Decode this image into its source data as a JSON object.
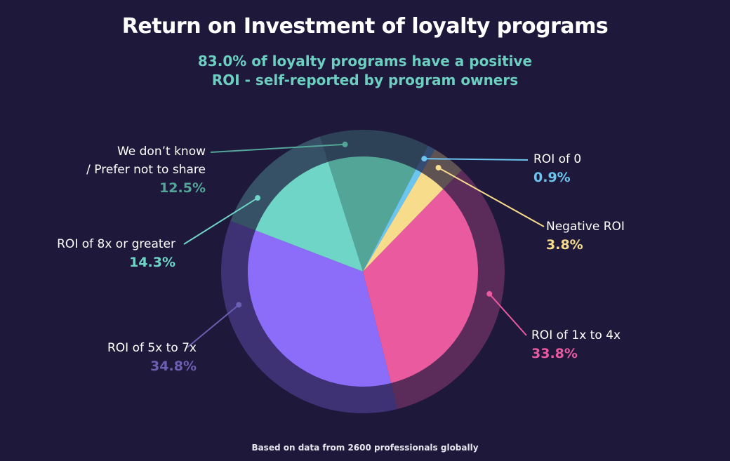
{
  "title": "Return on Investment of loyalty programs",
  "subtitle_line1": "83.0% of loyalty programs have a positive",
  "subtitle_line2": "ROI - self-reported by program owners",
  "footer": "Based on data from 2600 professionals globally",
  "chart_data": {
    "type": "pie",
    "title": "Return on Investment of loyalty programs",
    "categories": [
      "We don’t know / Prefer not to share",
      "ROI of 0",
      "Negative ROI",
      "ROI of 1x to 4x",
      "ROI of 5x to 7x",
      "ROI of 8x or greater"
    ],
    "values": [
      12.5,
      0.9,
      3.8,
      33.8,
      34.8,
      14.3
    ],
    "colors": [
      "#53a598",
      "#6cc5ee",
      "#f7dc8c",
      "#ea5a9f",
      "#8b6df9",
      "#6fd5c6"
    ],
    "value_labels": [
      "12.5%",
      "0.9%",
      "3.8%",
      "33.8%",
      "34.8%",
      "14.3%"
    ],
    "label_colors": [
      "#53a598",
      "#6cc5ee",
      "#f7dc8c",
      "#ea5a9f",
      "#6a5fb0",
      "#6fd5c6"
    ]
  },
  "labels": {
    "dontknow_line1": "We don’t know",
    "dontknow_line2": "/ Prefer not to share"
  }
}
